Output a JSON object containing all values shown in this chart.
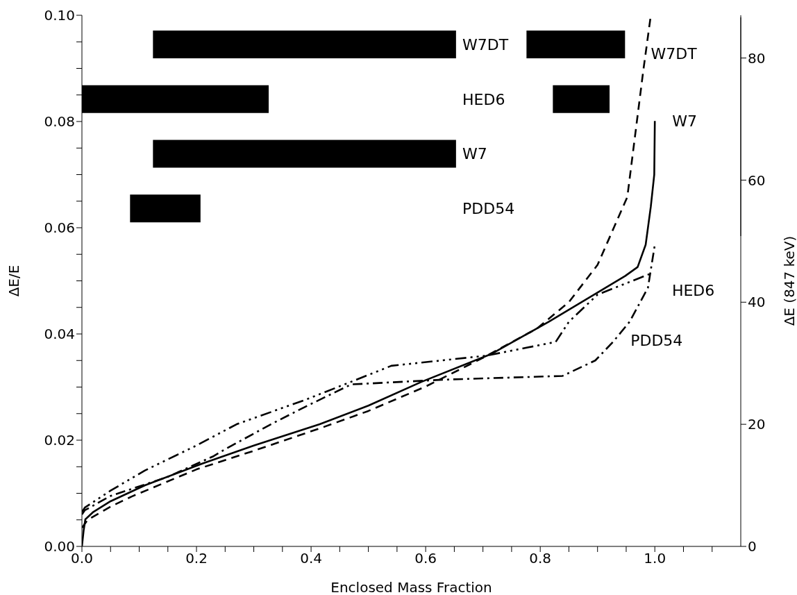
{
  "chart_data": [
    {
      "type": "line",
      "xlabel": "Enclosed Mass Fraction",
      "ylabel": "ΔE/E",
      "y2label": "ΔE (847 keV)",
      "xlim": [
        0,
        1.15
      ],
      "xticks": [
        {
          "value": 0,
          "label": "0.0"
        },
        {
          "value": 0.05,
          "label": null
        },
        {
          "value": 0.1,
          "label": null
        },
        {
          "value": 0.15,
          "label": null
        },
        {
          "value": 0.2,
          "label": "0.2"
        },
        {
          "value": 0.25,
          "label": null
        },
        {
          "value": 0.3,
          "label": null
        },
        {
          "value": 0.35,
          "label": null
        },
        {
          "value": 0.4,
          "label": "0.4"
        },
        {
          "value": 0.45,
          "label": null
        },
        {
          "value": 0.5,
          "label": null
        },
        {
          "value": 0.55,
          "label": null
        },
        {
          "value": 0.6,
          "label": "0.6"
        },
        {
          "value": 0.65,
          "label": null
        },
        {
          "value": 0.7,
          "label": null
        },
        {
          "value": 0.75,
          "label": null
        },
        {
          "value": 0.8,
          "label": "0.8"
        },
        {
          "value": 0.85,
          "label": null
        },
        {
          "value": 0.9,
          "label": null
        },
        {
          "value": 0.95,
          "label": null
        },
        {
          "value": 1.0,
          "label": "1.0"
        },
        {
          "value": 1.05,
          "label": null
        },
        {
          "value": 1.1,
          "label": null
        }
      ],
      "ylim": [
        0,
        0.1
      ],
      "yticks": [
        {
          "value": 0,
          "label": "0.00"
        },
        {
          "value": 0.005,
          "label": null
        },
        {
          "value": 0.01,
          "label": null
        },
        {
          "value": 0.015,
          "label": null
        },
        {
          "value": 0.02,
          "label": "0.02"
        },
        {
          "value": 0.025,
          "label": null
        },
        {
          "value": 0.03,
          "label": null
        },
        {
          "value": 0.035,
          "label": null
        },
        {
          "value": 0.04,
          "label": "0.04"
        },
        {
          "value": 0.045,
          "label": null
        },
        {
          "value": 0.05,
          "label": null
        },
        {
          "value": 0.055,
          "label": null
        },
        {
          "value": 0.06,
          "label": "0.06"
        },
        {
          "value": 0.065,
          "label": null
        },
        {
          "value": 0.07,
          "label": null
        },
        {
          "value": 0.075,
          "label": null
        },
        {
          "value": 0.08,
          "label": "0.08"
        },
        {
          "value": 0.085,
          "label": null
        },
        {
          "value": 0.09,
          "label": null
        },
        {
          "value": 0.095,
          "label": null
        },
        {
          "value": 0.1,
          "label": "0.10"
        }
      ],
      "y2lim": [
        0,
        87
      ],
      "y2ticks": [
        0,
        20,
        40,
        60,
        80
      ],
      "grid": false,
      "series": [
        {
          "name": "W7",
          "line_style": "solid",
          "color": "#000000",
          "x": [
            0,
            0.003,
            0.006,
            0.02,
            0.05,
            0.11,
            0.21,
            0.3,
            0.415,
            0.5,
            0.593,
            0.714,
            0.815,
            0.9,
            0.948,
            0.97,
            0.984,
            0.993,
            0.999,
            1.0
          ],
          "values": [
            0,
            0.003,
            0.0051,
            0.0065,
            0.0085,
            0.0115,
            0.0156,
            0.019,
            0.023,
            0.0265,
            0.031,
            0.0362,
            0.0423,
            0.0478,
            0.0509,
            0.0526,
            0.0568,
            0.064,
            0.07,
            0.0801
          ]
        },
        {
          "name": "W7DT",
          "line_style": "dashed",
          "color": "#000000",
          "x": [
            0,
            0.01,
            0.05,
            0.087,
            0.2,
            0.3,
            0.42,
            0.5,
            0.6,
            0.7,
            0.794,
            0.85,
            0.9,
            0.952,
            0.98,
            0.993
          ],
          "values": [
            0.0035,
            0.005,
            0.0075,
            0.0094,
            0.0145,
            0.018,
            0.0224,
            0.0255,
            0.0301,
            0.0355,
            0.041,
            0.046,
            0.053,
            0.0658,
            0.0897,
            0.1
          ]
        },
        {
          "name": "HED6",
          "line_style": "dashdotdotdot",
          "color": "#000000",
          "x": [
            0,
            0.005,
            0.05,
            0.11,
            0.2,
            0.27,
            0.39,
            0.47,
            0.54,
            0.705,
            0.827,
            0.85,
            0.9,
            0.996
          ],
          "values": [
            0.0065,
            0.0073,
            0.0105,
            0.0143,
            0.019,
            0.023,
            0.0276,
            0.031,
            0.034,
            0.0359,
            0.0385,
            0.0423,
            0.0474,
            0.0515
          ]
        },
        {
          "name": "PDD54",
          "line_style": "dashdot",
          "color": "#000000",
          "x": [
            0,
            0.005,
            0.05,
            0.15,
            0.23,
            0.25,
            0.33,
            0.39,
            0.47,
            0.633,
            0.839,
            0.896,
            0.927,
            0.956,
            0.988,
            1.0
          ],
          "values": [
            0.006,
            0.0068,
            0.0095,
            0.0131,
            0.017,
            0.0183,
            0.023,
            0.0263,
            0.0305,
            0.0314,
            0.0321,
            0.035,
            0.0385,
            0.0423,
            0.0487,
            0.0568
          ]
        }
      ]
    },
    {
      "type": "bar",
      "orientation": "horizontal",
      "categories": [
        "W7DT",
        "HED6",
        "W7",
        "PDD54"
      ],
      "xlim": [
        0,
        1.15
      ],
      "tick_labels": "y",
      "series": [
        {
          "color": "#000000",
          "base": [
            0.124,
            0,
            0.124,
            0.084
          ],
          "values": [
            0.529,
            0.326,
            0.529,
            0.123
          ]
        },
        {
          "color": "#000000",
          "base": [
            0.776,
            0.822,
            null,
            null
          ],
          "values": [
            0.172,
            0.099,
            null,
            null
          ]
        }
      ]
    }
  ]
}
